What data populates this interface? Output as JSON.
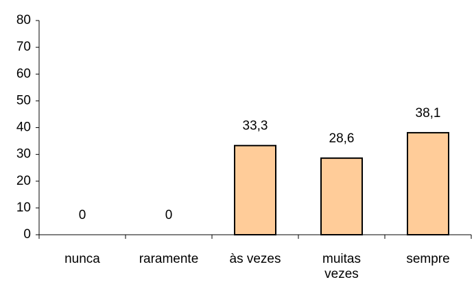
{
  "chart_data": {
    "type": "bar",
    "categories": [
      "nunca",
      "raramente",
      "às vezes",
      "muitas vezes",
      "sempre"
    ],
    "values": [
      0,
      0,
      33.3,
      28.6,
      38.1
    ],
    "value_labels": [
      "0",
      "0",
      "33,3",
      "28,6",
      "38,1"
    ],
    "color": "#ffcc99",
    "ylim": [
      0,
      80
    ],
    "yticks": [
      0,
      10,
      20,
      30,
      40,
      50,
      60,
      70,
      80
    ],
    "grid": false
  }
}
